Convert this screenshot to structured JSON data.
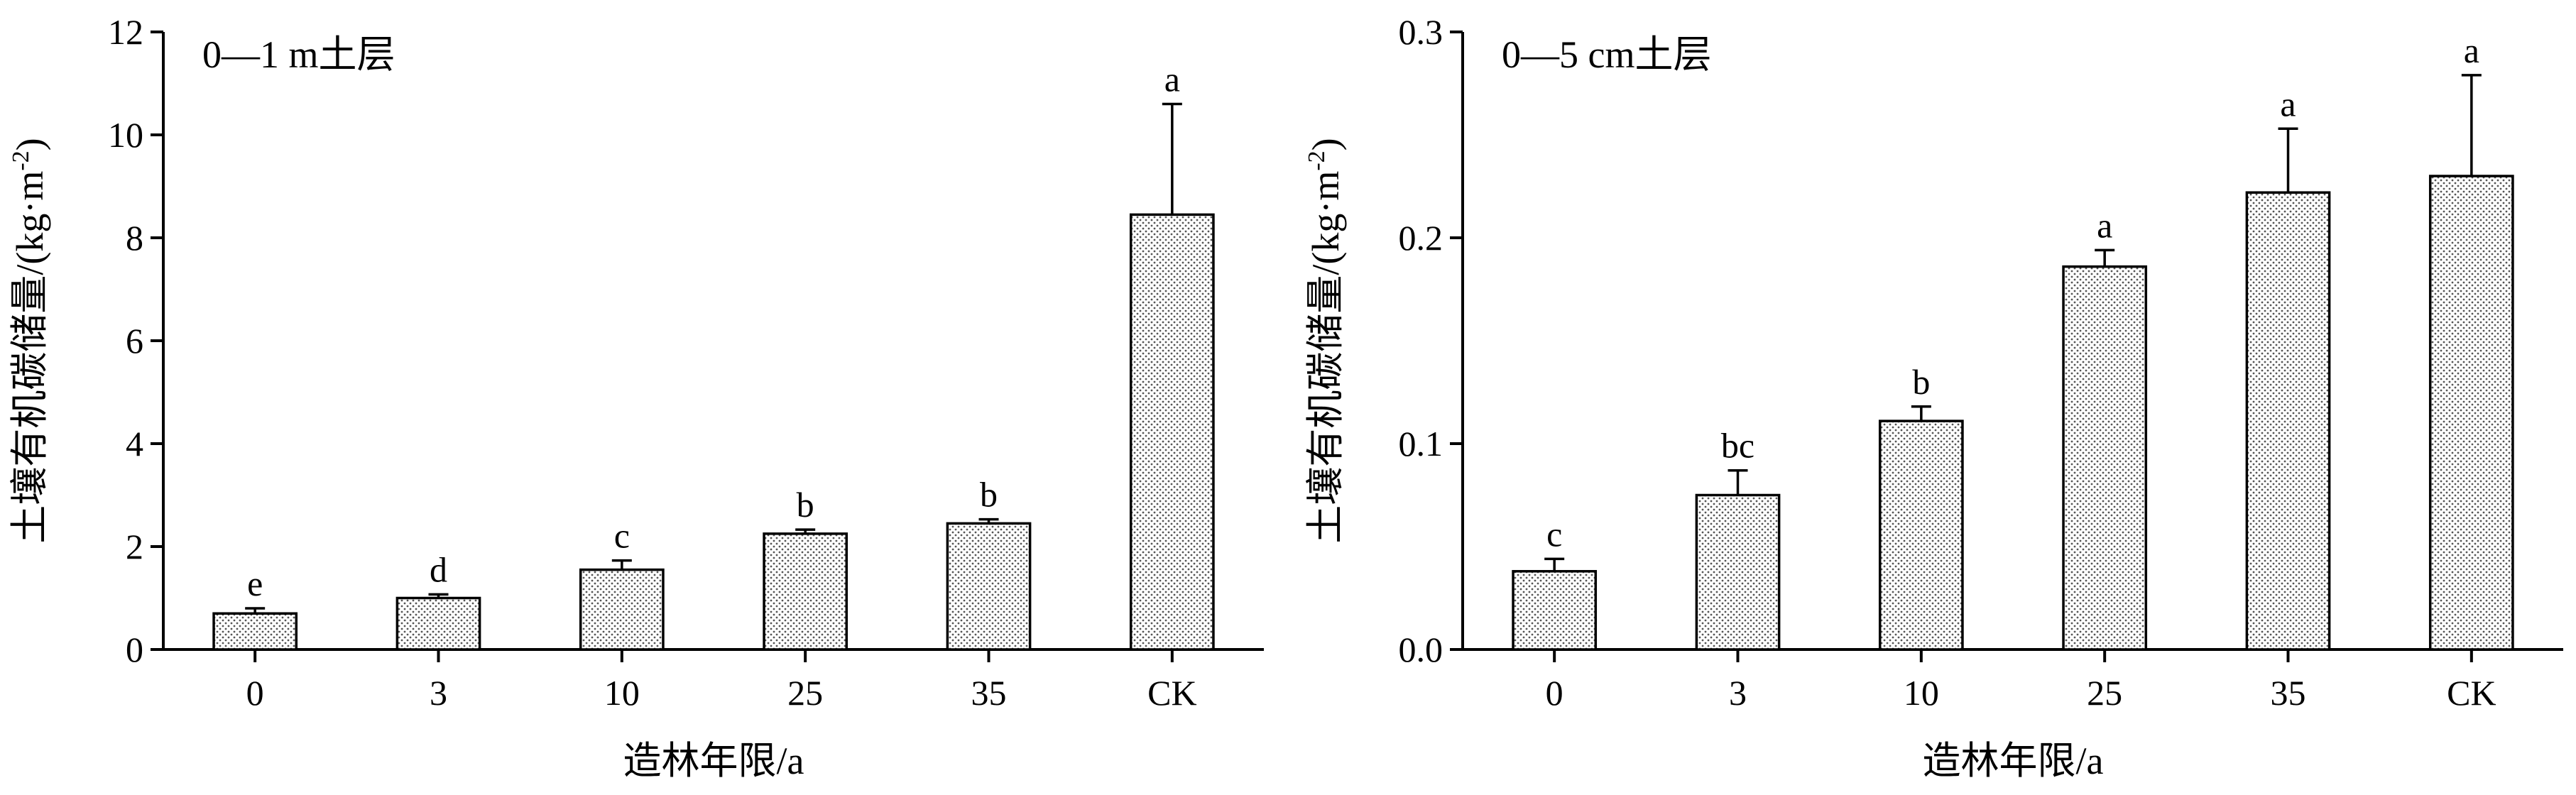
{
  "chart_data": [
    {
      "type": "bar",
      "panel_label": "0—1 m土层",
      "xlabel": "造林年限/a",
      "ylabel": "土壤有机碳储量/(kg·m",
      "ylabel_sup": "-2",
      "ylabel_tail": ")",
      "categories": [
        "0",
        "3",
        "10",
        "25",
        "35",
        "CK"
      ],
      "values": [
        0.7,
        1.0,
        1.55,
        2.25,
        2.45,
        8.45
      ],
      "errors": [
        0.1,
        0.07,
        0.18,
        0.08,
        0.08,
        2.15
      ],
      "significance": [
        "e",
        "d",
        "c",
        "b",
        "b",
        "a"
      ],
      "ylim": [
        0,
        12
      ],
      "yticks": [
        0,
        2,
        4,
        6,
        8,
        10,
        12
      ],
      "bar_pattern": "dotted"
    },
    {
      "type": "bar",
      "panel_label": "0—5 cm土层",
      "xlabel": "造林年限/a",
      "ylabel": "土壤有机碳储量/(kg·m",
      "ylabel_sup": "-2",
      "ylabel_tail": ")",
      "categories": [
        "0",
        "3",
        "10",
        "25",
        "35",
        "CK"
      ],
      "values": [
        0.038,
        0.075,
        0.111,
        0.186,
        0.222,
        0.23
      ],
      "errors": [
        0.006,
        0.012,
        0.007,
        0.008,
        0.031,
        0.049
      ],
      "significance": [
        "c",
        "bc",
        "b",
        "a",
        "a",
        "a"
      ],
      "ylim": [
        0,
        0.3
      ],
      "yticks": [
        "0.0",
        "0.1",
        "0.2",
        "0.3"
      ],
      "bar_pattern": "dotted"
    }
  ]
}
